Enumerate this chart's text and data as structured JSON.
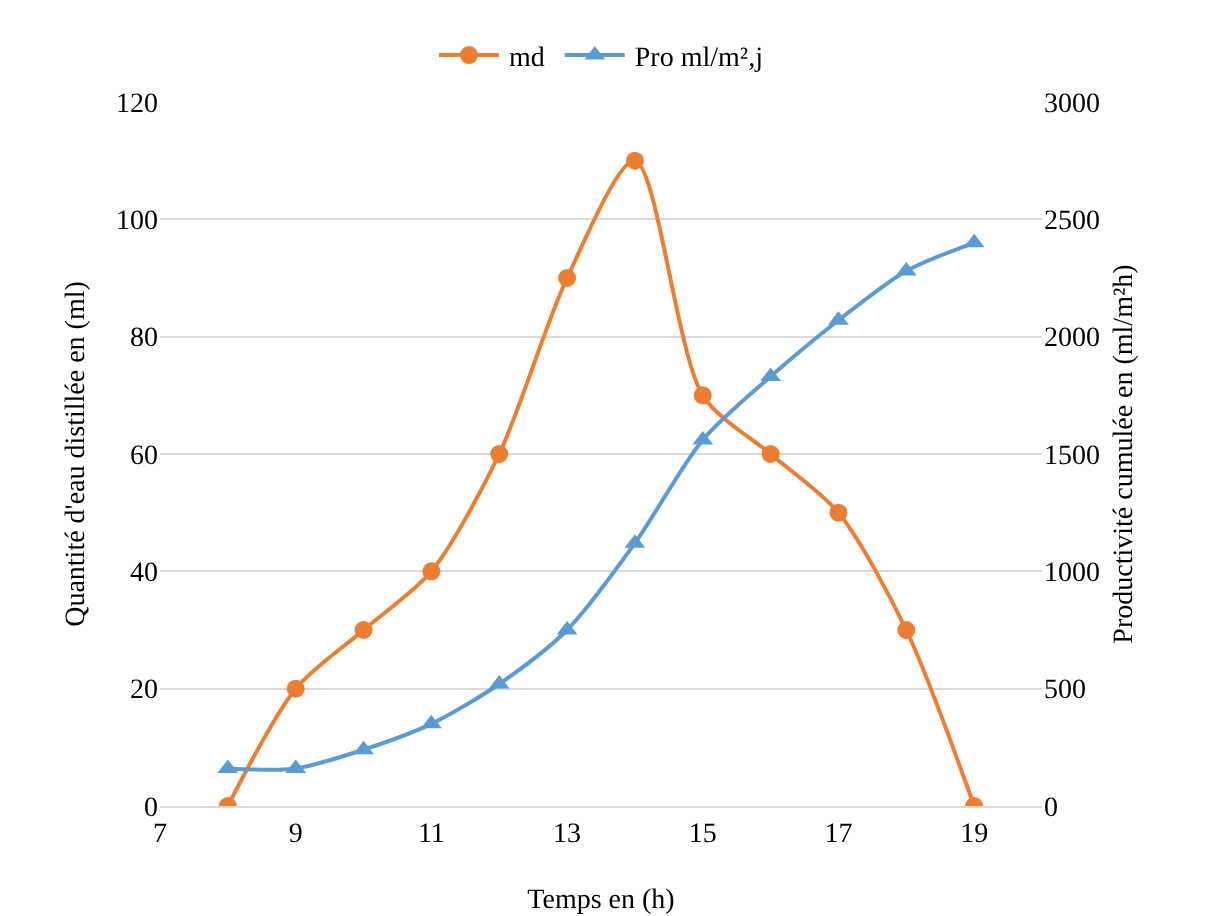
{
  "chart_data": {
    "type": "line",
    "xlabel": "Temps en (h)",
    "ylabel": "Quantité d'eau distillée en (ml)",
    "y2label": "Productivité cumulée en (ml/m²h)",
    "x": [
      8,
      9,
      10,
      11,
      12,
      13,
      14,
      15,
      16,
      17,
      18,
      19
    ],
    "series": [
      {
        "name": "md",
        "color": "#ed7d31",
        "marker": "circle",
        "values": [
          0,
          20,
          30,
          40,
          60,
          90,
          110,
          70,
          60,
          50,
          30,
          0
        ]
      },
      {
        "name": "Pro ml/m²,j",
        "color": "#5b9bd5",
        "marker": "triangle",
        "axis": "y2",
        "values": [
          160,
          160,
          240,
          350,
          520,
          750,
          1120,
          1560,
          1830,
          2070,
          2280,
          2400
        ]
      }
    ],
    "xlim": [
      7,
      20
    ],
    "xticks": [
      7,
      9,
      11,
      13,
      15,
      17,
      19
    ],
    "ylim": [
      0,
      120
    ],
    "yticks": [
      0,
      20,
      40,
      60,
      80,
      100,
      120
    ],
    "y2lim": [
      0,
      3000
    ],
    "y2ticks": [
      0,
      500,
      1000,
      1500,
      2000,
      2500,
      3000
    ],
    "grid": "y",
    "legend": "top",
    "line_style": "solid"
  }
}
